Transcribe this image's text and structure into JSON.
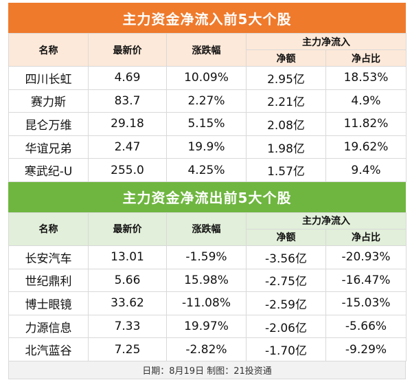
{
  "inflow": {
    "title": "主力资金净流入前5大个股",
    "headers": {
      "name": "名称",
      "price": "最新价",
      "change": "涨跌幅",
      "group": "主力净流入",
      "net": "净额",
      "ratio": "净占比"
    },
    "rows": [
      {
        "name": "四川长虹",
        "price": "4.69",
        "change": "10.09%",
        "net": "2.95亿",
        "ratio": "18.53%"
      },
      {
        "name": "赛力斯",
        "price": "83.7",
        "change": "2.27%",
        "net": "2.21亿",
        "ratio": "4.9%"
      },
      {
        "name": "昆仑万维",
        "price": "29.18",
        "change": "5.15%",
        "net": "2.08亿",
        "ratio": "11.82%"
      },
      {
        "name": "华谊兄弟",
        "price": "2.47",
        "change": "19.9%",
        "net": "1.98亿",
        "ratio": "19.62%"
      },
      {
        "name": "寒武纪-U",
        "price": "255.0",
        "change": "4.25%",
        "net": "1.57亿",
        "ratio": "9.4%"
      }
    ]
  },
  "outflow": {
    "title": "主力资金净流出前5大个股",
    "headers": {
      "name": "名称",
      "price": "最新价",
      "change": "涨跌幅",
      "group": "主力净流入",
      "net": "净额",
      "ratio": "净占比"
    },
    "rows": [
      {
        "name": "长安汽车",
        "price": "13.01",
        "change": "-1.59%",
        "net": "-3.56亿",
        "ratio": "-20.93%"
      },
      {
        "name": "世纪鼎利",
        "price": "5.66",
        "change": "15.98%",
        "net": "-2.75亿",
        "ratio": "-16.47%"
      },
      {
        "name": "博士眼镜",
        "price": "33.62",
        "change": "-11.08%",
        "net": "-2.59亿",
        "ratio": "-15.03%"
      },
      {
        "name": "力源信息",
        "price": "7.33",
        "change": "19.97%",
        "net": "-2.06亿",
        "ratio": "-5.66%"
      },
      {
        "name": "北汽蓝谷",
        "price": "7.25",
        "change": "-2.82%",
        "net": "-1.70亿",
        "ratio": "-9.29%"
      }
    ]
  },
  "footer": "日期：8月19日 制图：21投资通",
  "colors": {
    "inflow_title_bg": "#ef7a2c",
    "inflow_header_bg": "#fde9d9",
    "outflow_title_bg": "#6fb640",
    "outflow_header_bg": "#e2efda"
  }
}
